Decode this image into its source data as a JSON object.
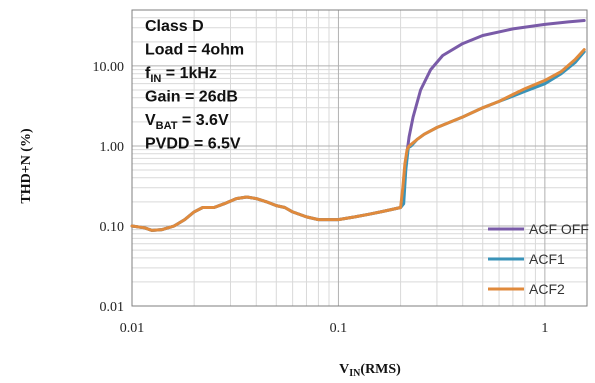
{
  "chart_data": {
    "type": "line",
    "xscale": "log",
    "yscale": "log",
    "xlim": [
      0.01,
      1.6
    ],
    "ylim": [
      0.01,
      50
    ],
    "x_ticks": [
      {
        "value": 0.01,
        "label": "0.01"
      },
      {
        "value": 0.1,
        "label": "0.1"
      },
      {
        "value": 1,
        "label": "1"
      }
    ],
    "y_ticks": [
      {
        "value": 10,
        "label": "10.00"
      },
      {
        "value": 1,
        "label": "1.00"
      },
      {
        "value": 0.1,
        "label": "0.10"
      },
      {
        "value": 0.01,
        "label": "0.01"
      }
    ],
    "xlabel": {
      "main": "V",
      "sub": "IN",
      "rest": "(RMS)"
    },
    "ylabel": "THD+N (%)",
    "grid": true,
    "legend_position": "bottom-right",
    "annotations": [
      {
        "main": "Class D",
        "sub": "",
        "rest": ""
      },
      {
        "main": "Load = 4ohm",
        "sub": "",
        "rest": ""
      },
      {
        "main": "f",
        "sub": "IN",
        "rest": " = 1kHz"
      },
      {
        "main": "Gain = 26dB",
        "sub": "",
        "rest": ""
      },
      {
        "main": "V",
        "sub": "BAT",
        "rest": " = 3.6V"
      },
      {
        "main": "PVDD = 6.5V",
        "sub": "",
        "rest": ""
      }
    ],
    "series": [
      {
        "name": "ACF OFF",
        "color": "#7A5BA8",
        "x": [
          0.01,
          0.0115,
          0.0125,
          0.014,
          0.016,
          0.018,
          0.02,
          0.022,
          0.025,
          0.028,
          0.032,
          0.036,
          0.04,
          0.045,
          0.05,
          0.055,
          0.06,
          0.07,
          0.08,
          0.09,
          0.1,
          0.12,
          0.14,
          0.16,
          0.18,
          0.2,
          0.205,
          0.21,
          0.215,
          0.22,
          0.23,
          0.25,
          0.28,
          0.32,
          0.4,
          0.5,
          0.7,
          1.0,
          1.3,
          1.55
        ],
        "y": [
          0.1,
          0.095,
          0.088,
          0.09,
          0.1,
          0.12,
          0.15,
          0.17,
          0.17,
          0.19,
          0.22,
          0.23,
          0.22,
          0.2,
          0.18,
          0.17,
          0.15,
          0.13,
          0.12,
          0.12,
          0.12,
          0.13,
          0.14,
          0.15,
          0.16,
          0.17,
          0.21,
          0.4,
          0.85,
          1.3,
          2.3,
          5.0,
          9.0,
          13.5,
          19.0,
          24.0,
          29.0,
          33.0,
          35.5,
          37.0
        ]
      },
      {
        "name": "ACF1",
        "color": "#3A93B8",
        "x": [
          0.01,
          0.0115,
          0.0125,
          0.014,
          0.016,
          0.018,
          0.02,
          0.022,
          0.025,
          0.028,
          0.032,
          0.036,
          0.04,
          0.045,
          0.05,
          0.055,
          0.06,
          0.07,
          0.08,
          0.09,
          0.1,
          0.12,
          0.14,
          0.16,
          0.18,
          0.2,
          0.207,
          0.212,
          0.218,
          0.225,
          0.24,
          0.26,
          0.3,
          0.35,
          0.4,
          0.5,
          0.6,
          0.7,
          0.8,
          1.0,
          1.2,
          1.4,
          1.55
        ],
        "y": [
          0.1,
          0.095,
          0.088,
          0.09,
          0.1,
          0.12,
          0.15,
          0.17,
          0.17,
          0.19,
          0.22,
          0.23,
          0.22,
          0.2,
          0.18,
          0.17,
          0.15,
          0.13,
          0.12,
          0.12,
          0.12,
          0.13,
          0.14,
          0.15,
          0.16,
          0.17,
          0.19,
          0.5,
          0.95,
          1.0,
          1.2,
          1.4,
          1.7,
          2.0,
          2.3,
          3.0,
          3.6,
          4.2,
          4.8,
          6.0,
          8.0,
          11.0,
          15.0
        ]
      },
      {
        "name": "ACF2",
        "color": "#E08A3C",
        "x": [
          0.01,
          0.0115,
          0.0125,
          0.014,
          0.016,
          0.018,
          0.02,
          0.022,
          0.025,
          0.028,
          0.032,
          0.036,
          0.04,
          0.045,
          0.05,
          0.055,
          0.06,
          0.07,
          0.08,
          0.09,
          0.1,
          0.12,
          0.14,
          0.16,
          0.18,
          0.2,
          0.205,
          0.21,
          0.215,
          0.22,
          0.24,
          0.26,
          0.3,
          0.35,
          0.4,
          0.5,
          0.6,
          0.7,
          0.8,
          1.0,
          1.2,
          1.4,
          1.55
        ],
        "y": [
          0.1,
          0.095,
          0.088,
          0.09,
          0.1,
          0.12,
          0.15,
          0.17,
          0.17,
          0.19,
          0.22,
          0.23,
          0.22,
          0.2,
          0.18,
          0.17,
          0.15,
          0.13,
          0.12,
          0.12,
          0.12,
          0.13,
          0.14,
          0.15,
          0.16,
          0.17,
          0.3,
          0.6,
          0.9,
          1.0,
          1.2,
          1.4,
          1.7,
          2.0,
          2.3,
          3.0,
          3.6,
          4.4,
          5.2,
          6.6,
          8.5,
          12.0,
          16.0
        ]
      }
    ]
  }
}
